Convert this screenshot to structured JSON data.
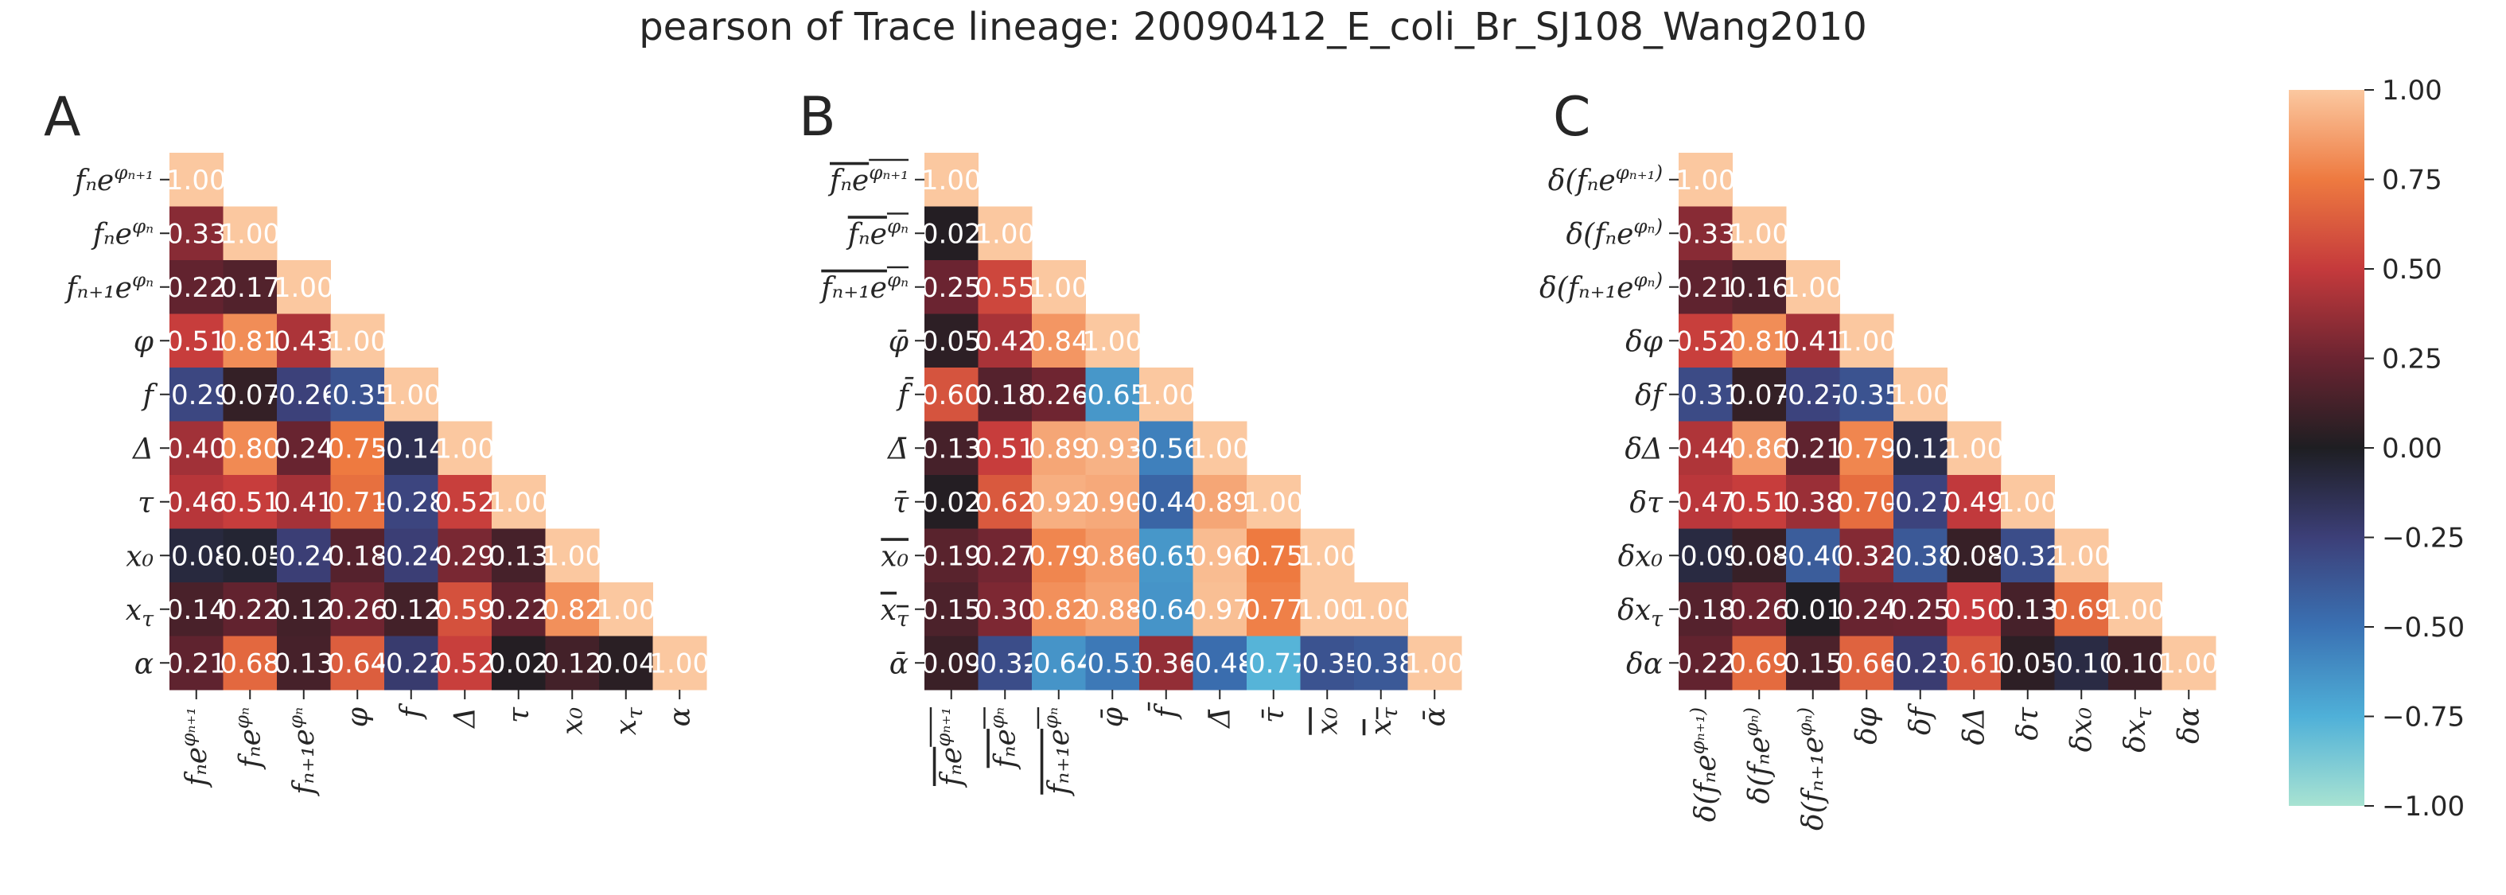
{
  "figure": {
    "title": "pearson of Trace lineage: 20090412_E_coli_Br_SJ108_Wang2010"
  },
  "colors": {
    "background": "#ffffff",
    "text": "#262626",
    "cell_text_light": "#ffffff",
    "colormap_stops": [
      {
        "v": -1.0,
        "c": "#a8e3d2"
      },
      {
        "v": -0.75,
        "c": "#4fb0d8"
      },
      {
        "v": -0.5,
        "c": "#3a71b3"
      },
      {
        "v": -0.25,
        "c": "#3c3f78"
      },
      {
        "v": 0.0,
        "c": "#1e1e22"
      },
      {
        "v": 0.25,
        "c": "#6b2431"
      },
      {
        "v": 0.5,
        "c": "#c53a3c"
      },
      {
        "v": 0.75,
        "c": "#ee7a40"
      },
      {
        "v": 1.0,
        "c": "#fbc8a0"
      }
    ]
  },
  "colorbar": {
    "ticks": [
      "1.00",
      "0.75",
      "0.50",
      "0.25",
      "0.00",
      "−0.25",
      "−0.50",
      "−0.75",
      "−1.00"
    ],
    "vmin": -1,
    "vmax": 1
  },
  "chart_data": [
    {
      "type": "heatmap",
      "panel_label": "A",
      "layout": "lower-triangle",
      "row_labels": [
        "fₙe^φₙ₊₁",
        "fₙe^φₙ",
        "fₙ₊₁e^φₙ",
        "φ",
        "f",
        "Δ",
        "τ",
        "x₀",
        "x_τ",
        "α"
      ],
      "col_labels": [
        "fₙe^φₙ₊₁",
        "fₙe^φₙ",
        "fₙ₊₁e^φₙ",
        "φ",
        "f",
        "Δ",
        "τ",
        "x₀",
        "x_τ",
        "α"
      ],
      "value_labels": [
        [
          "1.00"
        ],
        [
          "0.33",
          "1.00"
        ],
        [
          "0.22",
          "0.17",
          "1.00"
        ],
        [
          "0.51",
          "0.81",
          "0.43",
          "1.00"
        ],
        [
          "-0.29",
          "0.07",
          "-0.26",
          "-0.35",
          "1.00"
        ],
        [
          "0.40",
          "0.80",
          "0.24",
          "0.75",
          "-0.14",
          "1.00"
        ],
        [
          "0.46",
          "0.51",
          "0.41",
          "0.71",
          "-0.28",
          "0.52",
          "1.00"
        ],
        [
          "-0.08",
          "-0.05",
          "-0.24",
          "0.18",
          "-0.24",
          "0.29",
          "0.13",
          "1.00"
        ],
        [
          "0.14",
          "0.22",
          "0.12",
          "0.26",
          "0.12",
          "0.59",
          "0.22",
          "0.82",
          "1.00"
        ],
        [
          "0.21",
          "0.68",
          "0.13",
          "0.64",
          "-0.22",
          "0.52",
          "0.02",
          "0.12",
          "0.04",
          "1.00"
        ]
      ],
      "values": [
        [
          1.0
        ],
        [
          0.33,
          1.0
        ],
        [
          0.22,
          0.17,
          1.0
        ],
        [
          0.51,
          0.81,
          0.43,
          1.0
        ],
        [
          -0.29,
          0.07,
          -0.26,
          -0.35,
          1.0
        ],
        [
          0.4,
          0.8,
          0.24,
          0.75,
          -0.14,
          1.0
        ],
        [
          0.46,
          0.51,
          0.41,
          0.71,
          -0.28,
          0.52,
          1.0
        ],
        [
          -0.08,
          -0.05,
          -0.24,
          0.18,
          -0.24,
          0.29,
          0.13,
          1.0
        ],
        [
          0.14,
          0.22,
          0.12,
          0.26,
          0.12,
          0.59,
          0.22,
          0.82,
          1.0
        ],
        [
          0.21,
          0.68,
          0.13,
          0.64,
          -0.22,
          0.52,
          0.02,
          0.12,
          0.04,
          1.0
        ]
      ]
    },
    {
      "type": "heatmap",
      "panel_label": "B",
      "layout": "lower-triangle",
      "row_labels": [
        "fₙe^φₙ₊₁ (mean)",
        "fₙe^φₙ (mean)",
        "fₙ₊₁e^φₙ (mean)",
        "φ̄",
        "f̄",
        "Δ̄",
        "τ̄",
        "x₀ (mean)",
        "x_τ (mean)",
        "ᾱ"
      ],
      "col_labels": [
        "fₙe^φₙ₊₁ (mean)",
        "fₙe^φₙ (mean)",
        "fₙ₊₁e^φₙ (mean)",
        "φ̄",
        "f̄",
        "Δ̄",
        "τ̄",
        "x₀ (mean)",
        "x_τ (mean)",
        "ᾱ"
      ],
      "value_labels": [
        [
          "1.00"
        ],
        [
          "0.02",
          "1.00"
        ],
        [
          "0.25",
          "0.55",
          "1.00"
        ],
        [
          "0.05",
          "0.42",
          "0.84",
          "1.00"
        ],
        [
          "0.60",
          "0.18",
          "0.26",
          "-0.65",
          "1.00"
        ],
        [
          "0.13",
          "0.51",
          "0.89",
          "0.93",
          "-0.56",
          "1.00"
        ],
        [
          "0.02",
          "0.62",
          "0.92",
          "0.90",
          "-0.44",
          "0.89",
          "1.00"
        ],
        [
          "0.19",
          "0.27",
          "0.79",
          "0.86",
          "-0.65",
          "0.96",
          "0.75",
          "1.00"
        ],
        [
          "0.15",
          "0.30",
          "0.82",
          "0.88",
          "-0.64",
          "0.97",
          "0.77",
          "1.00",
          "1.00"
        ],
        [
          "0.09",
          "-0.32",
          "-0.64",
          "-0.53",
          "0.36",
          "-0.48",
          "-0.77",
          "-0.35",
          "-0.38",
          "1.00"
        ]
      ],
      "values": [
        [
          1.0
        ],
        [
          0.02,
          1.0
        ],
        [
          0.25,
          0.55,
          1.0
        ],
        [
          0.05,
          0.42,
          0.84,
          1.0
        ],
        [
          0.6,
          0.18,
          0.26,
          -0.65,
          1.0
        ],
        [
          0.13,
          0.51,
          0.89,
          0.93,
          -0.56,
          1.0
        ],
        [
          0.02,
          0.62,
          0.92,
          0.9,
          -0.44,
          0.89,
          1.0
        ],
        [
          0.19,
          0.27,
          0.79,
          0.86,
          -0.65,
          0.96,
          0.75,
          1.0
        ],
        [
          0.15,
          0.3,
          0.82,
          0.88,
          -0.64,
          0.97,
          0.77,
          1.0,
          1.0
        ],
        [
          0.09,
          -0.32,
          -0.64,
          -0.53,
          0.36,
          -0.48,
          -0.77,
          -0.35,
          -0.38,
          1.0
        ]
      ]
    },
    {
      "type": "heatmap",
      "panel_label": "C",
      "layout": "lower-triangle",
      "row_labels": [
        "δ(fₙe^φₙ₊₁)",
        "δ(fₙe^φₙ)",
        "δ(fₙ₊₁e^φₙ)",
        "δφ",
        "δf",
        "δΔ",
        "δτ",
        "δx₀",
        "δx_τ",
        "δα"
      ],
      "col_labels": [
        "δ(fₙe^φₙ₊₁)",
        "δ(fₙe^φₙ)",
        "δ(fₙ₊₁e^φₙ)",
        "δφ",
        "δf",
        "δΔ",
        "δτ",
        "δx₀",
        "δx_τ",
        "δα"
      ],
      "value_labels": [
        [
          "1.00"
        ],
        [
          "0.33",
          "1.00"
        ],
        [
          "0.21",
          "0.16",
          "1.00"
        ],
        [
          "0.52",
          "0.81",
          "0.41",
          "1.00"
        ],
        [
          "-0.31",
          "0.07",
          "-0.27",
          "-0.35",
          "1.00"
        ],
        [
          "0.44",
          "0.86",
          "0.21",
          "0.79",
          "-0.12",
          "1.00"
        ],
        [
          "0.47",
          "0.51",
          "0.38",
          "0.70",
          "-0.27",
          "0.49",
          "1.00"
        ],
        [
          "-0.09",
          "0.08",
          "-0.40",
          "0.32",
          "-0.38",
          "0.08",
          "-0.32",
          "1.00"
        ],
        [
          "0.18",
          "0.26",
          "0.01",
          "0.24",
          "0.25",
          "0.50",
          "0.13",
          "0.69",
          "1.00"
        ],
        [
          "0.22",
          "0.69",
          "0.15",
          "0.66",
          "-0.23",
          "0.61",
          "0.05",
          "-0.10",
          "0.10",
          "1.00"
        ]
      ],
      "values": [
        [
          1.0
        ],
        [
          0.33,
          1.0
        ],
        [
          0.21,
          0.16,
          1.0
        ],
        [
          0.52,
          0.81,
          0.41,
          1.0
        ],
        [
          -0.31,
          0.07,
          -0.27,
          -0.35,
          1.0
        ],
        [
          0.44,
          0.86,
          0.21,
          0.79,
          -0.12,
          1.0
        ],
        [
          0.47,
          0.51,
          0.38,
          0.7,
          -0.27,
          0.49,
          1.0
        ],
        [
          -0.09,
          0.08,
          -0.4,
          0.32,
          -0.38,
          0.08,
          -0.32,
          1.0
        ],
        [
          0.18,
          0.26,
          0.01,
          0.24,
          0.25,
          0.5,
          0.13,
          0.69,
          1.0
        ],
        [
          0.22,
          0.69,
          0.15,
          0.66,
          -0.23,
          0.61,
          0.05,
          -0.1,
          0.1,
          1.0
        ]
      ]
    }
  ]
}
